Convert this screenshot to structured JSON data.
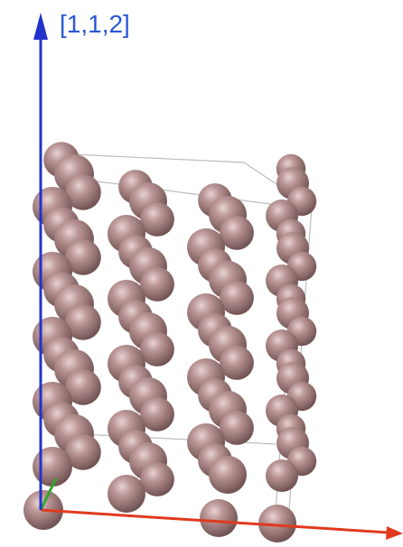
{
  "axis_label": "[1,1,2]"
}
